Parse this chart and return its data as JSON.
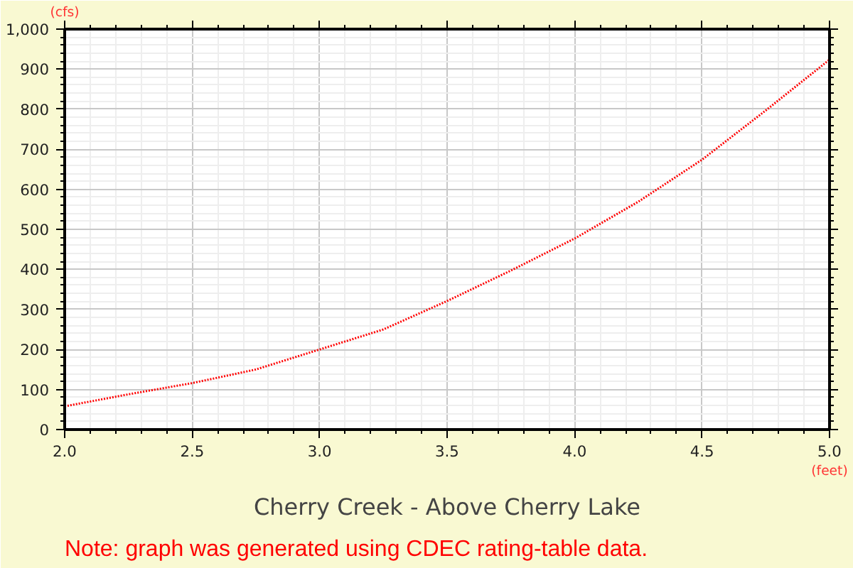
{
  "chart_data": {
    "type": "line",
    "title": "Cherry Creek - Above Cherry Lake",
    "xlabel": "(feet)",
    "ylabel": "(cfs)",
    "annotations": [
      "Note: graph was generated using CDEC rating-table data."
    ],
    "x": [
      2.0,
      2.25,
      2.5,
      2.75,
      3.0,
      3.25,
      3.5,
      3.75,
      4.0,
      4.25,
      4.5,
      4.75,
      5.0
    ],
    "series": [
      {
        "color": "#ff0000",
        "values": [
          58,
          88,
          116,
          150,
          200,
          250,
          321,
          397,
          477,
          569,
          674,
          797,
          924
        ]
      }
    ],
    "xlim": [
      2.0,
      5.0
    ],
    "ylim": [
      0,
      1000
    ],
    "xticks": [
      {
        "value": 2.0,
        "label": "2.0"
      },
      2.5,
      {
        "value": 3.0,
        "label": "3.0"
      },
      3.5,
      {
        "value": 4.0,
        "label": "4.0"
      },
      4.5,
      {
        "value": 5.0,
        "label": "5.0"
      }
    ],
    "yticks": [
      0,
      100,
      200,
      300,
      400,
      500,
      600,
      700,
      800,
      900,
      {
        "value": 1000,
        "label": "1,000"
      }
    ],
    "grid": true,
    "marker": "none",
    "line_style": "dotted"
  }
}
